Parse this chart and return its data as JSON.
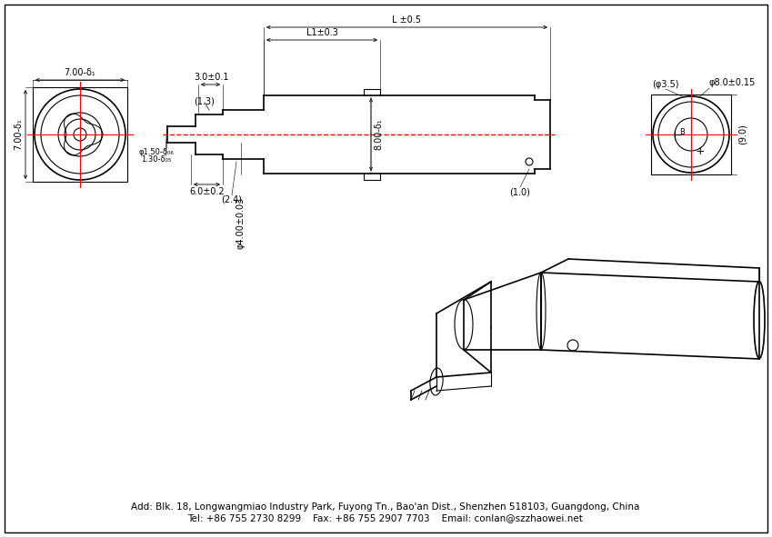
{
  "bg_color": "#ffffff",
  "line_color": "#000000",
  "red_line_color": "#ff0000",
  "font_size": 7,
  "footer_text1": "Add: Blk. 18, Longwangmiao Industry Park, Fuyong Tn., Bao'an Dist., Shenzhen 518103, Guangdong, China",
  "footer_text2": "Tel: +86 755 2730 8299    Fax: +86 755 2907 7703    Email: conlan@szzhaowei.net",
  "dims": {
    "L_label": "L ±0.5",
    "L1_label": "L1±0.3",
    "dia_3_5": "(φ3.5)",
    "dia_8_right": "φ8.0±0.15",
    "dim_9_0": "(9.0)",
    "dim_1_0": "(1.0)",
    "dia_8_body": "8.00-δ₁",
    "dim_7_top": "7.00-δ₁",
    "dim_7_side": "7.00-δ₁",
    "dia_4": "φ4.00±0.03",
    "dia_1_50_line1": "φ1.50-δ₀₆",
    "dia_1_50_line2": "1.30-δ₀₅",
    "dim_3_0": "3.0±0.1",
    "dim_6_0": "6.0±0.2",
    "dim_1_3": "(1.3)",
    "dim_2_4": "(2.4)"
  }
}
